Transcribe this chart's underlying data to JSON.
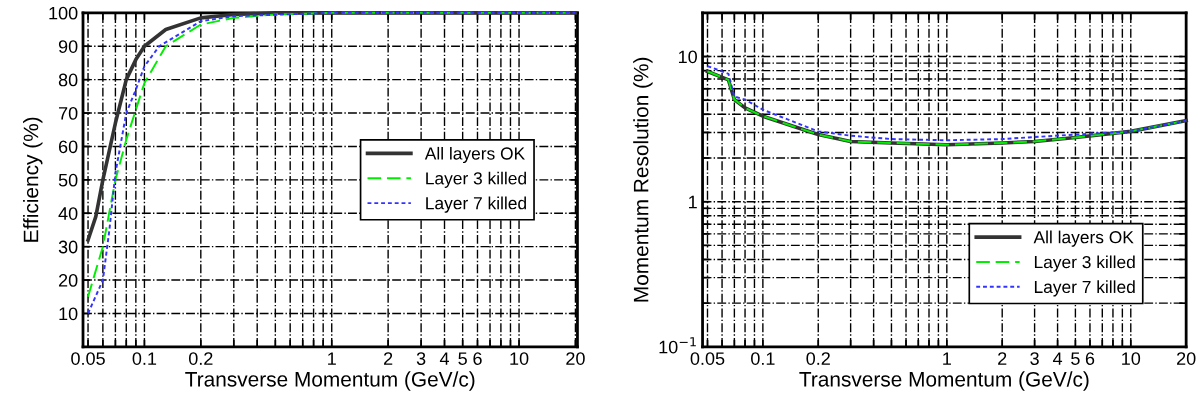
{
  "chart_data": [
    {
      "type": "line",
      "xlabel": "Transverse Momentum (GeV/c)",
      "ylabel": "Efficiency (%)",
      "log": "x",
      "grid": true,
      "legend": "center right",
      "xlim": [
        0.047,
        20.5
      ],
      "ylim": [
        0,
        100
      ],
      "xticks": [
        0.05,
        {
          "value": 0.06,
          "label": null
        },
        {
          "value": 0.07,
          "label": null
        },
        {
          "value": 0.08,
          "label": null
        },
        {
          "value": 0.09,
          "label": null
        },
        0.1,
        0.2,
        {
          "value": 0.3,
          "label": null
        },
        {
          "value": 0.4,
          "label": null
        },
        {
          "value": 0.5,
          "label": null
        },
        {
          "value": 0.6,
          "label": null
        },
        {
          "value": 0.7,
          "label": null
        },
        {
          "value": 0.8,
          "label": null
        },
        {
          "value": 0.9,
          "label": null
        },
        1,
        2,
        3,
        4,
        5,
        6,
        {
          "value": 7,
          "label": null
        },
        {
          "value": 8,
          "label": null
        },
        {
          "value": 9,
          "label": null
        },
        10,
        20
      ],
      "yticks": [
        10,
        20,
        30,
        40,
        50,
        60,
        70,
        80,
        90,
        100
      ],
      "series": [
        {
          "name": "All layers OK",
          "color": "#333333",
          "line_style": "solid",
          "x": [
            0.05,
            0.055,
            0.06,
            0.07,
            0.08,
            0.09,
            0.1,
            0.13,
            0.2,
            0.3,
            0.5,
            1,
            20
          ],
          "values": [
            32,
            39,
            50,
            67,
            80,
            86,
            90,
            95,
            98.5,
            99.5,
            100,
            100,
            100
          ]
        },
        {
          "name": "Layer 3 killed",
          "color": "#00ee00",
          "line_style": "dashed",
          "x": [
            0.05,
            0.06,
            0.07,
            0.08,
            0.09,
            0.1,
            0.13,
            0.2,
            0.3,
            0.5,
            1,
            20
          ],
          "values": [
            15,
            30,
            50,
            62,
            71,
            79,
            90,
            96.5,
            98.5,
            99.5,
            100,
            100
          ]
        },
        {
          "name": "Layer 7 killed",
          "color": "#3333ff",
          "line_style": "dotted",
          "x": [
            0.05,
            0.06,
            0.065,
            0.07,
            0.08,
            0.09,
            0.1,
            0.12,
            0.2,
            0.3,
            1,
            20
          ],
          "values": [
            10,
            20,
            35,
            52,
            70,
            77,
            84,
            90,
            97.5,
            99,
            100,
            100
          ]
        }
      ]
    },
    {
      "type": "line",
      "xlabel": "Transverse Momentum (GeV/c)",
      "ylabel": "Momentum Resolution (%)",
      "log": "xy",
      "grid": true,
      "legend": "lower right",
      "xlim": [
        0.047,
        20
      ],
      "ylim": [
        0.1,
        20
      ],
      "xticks": [
        0.05,
        {
          "value": 0.06,
          "label": null
        },
        {
          "value": 0.07,
          "label": null
        },
        {
          "value": 0.08,
          "label": null
        },
        {
          "value": 0.09,
          "label": null
        },
        0.1,
        0.2,
        {
          "value": 0.3,
          "label": null
        },
        {
          "value": 0.4,
          "label": null
        },
        {
          "value": 0.5,
          "label": null
        },
        {
          "value": 0.6,
          "label": null
        },
        {
          "value": 0.7,
          "label": null
        },
        {
          "value": 0.8,
          "label": null
        },
        {
          "value": 0.9,
          "label": null
        },
        1,
        2,
        3,
        4,
        5,
        6,
        {
          "value": 7,
          "label": null
        },
        {
          "value": 8,
          "label": null
        },
        {
          "value": 9,
          "label": null
        },
        10,
        20
      ],
      "yticks": [
        {
          "value": 0.1,
          "label": "10$^{−1}$"
        },
        {
          "value": 0.2,
          "label": null
        },
        {
          "value": 0.3,
          "label": null
        },
        {
          "value": 0.4,
          "label": null
        },
        {
          "value": 0.5,
          "label": null
        },
        {
          "value": 0.6,
          "label": null
        },
        {
          "value": 0.7,
          "label": null
        },
        {
          "value": 0.8,
          "label": null
        },
        {
          "value": 0.9,
          "label": null
        },
        1,
        {
          "value": 2,
          "label": null
        },
        {
          "value": 3,
          "label": null
        },
        {
          "value": 4,
          "label": null
        },
        {
          "value": 5,
          "label": null
        },
        {
          "value": 6,
          "label": null
        },
        {
          "value": 7,
          "label": null
        },
        {
          "value": 8,
          "label": null
        },
        {
          "value": 9,
          "label": null
        },
        10
      ],
      "series": [
        {
          "name": "All layers OK",
          "color": "#333333",
          "line_style": "solid",
          "x": [
            0.05,
            0.065,
            0.07,
            0.08,
            0.1,
            0.2,
            0.3,
            0.5,
            1,
            2,
            3,
            5,
            10,
            20
          ],
          "values": [
            7.9,
            6.9,
            5.05,
            4.43,
            3.88,
            2.9,
            2.6,
            2.54,
            2.47,
            2.54,
            2.6,
            2.77,
            3.05,
            3.62
          ]
        },
        {
          "name": "Layer 3 killed",
          "color": "#00ee00",
          "line_style": "dashed",
          "x": [
            0.05,
            0.065,
            0.07,
            0.08,
            0.1,
            0.2,
            0.3,
            0.5,
            1,
            2,
            3,
            5,
            10,
            20
          ],
          "values": [
            7.9,
            6.9,
            5.05,
            4.43,
            3.88,
            2.9,
            2.6,
            2.54,
            2.47,
            2.54,
            2.6,
            2.77,
            3.05,
            3.62
          ]
        },
        {
          "name": "Layer 7 killed",
          "color": "#3333ff",
          "line_style": "dotted",
          "x": [
            0.05,
            0.065,
            0.07,
            0.08,
            0.1,
            0.2,
            0.3,
            0.5,
            1,
            2,
            3,
            5,
            10,
            20
          ],
          "values": [
            8.6,
            7.6,
            5.3,
            5.05,
            4.3,
            3.05,
            2.85,
            2.7,
            2.65,
            2.7,
            2.79,
            2.9,
            3.05,
            3.62
          ]
        }
      ]
    }
  ]
}
